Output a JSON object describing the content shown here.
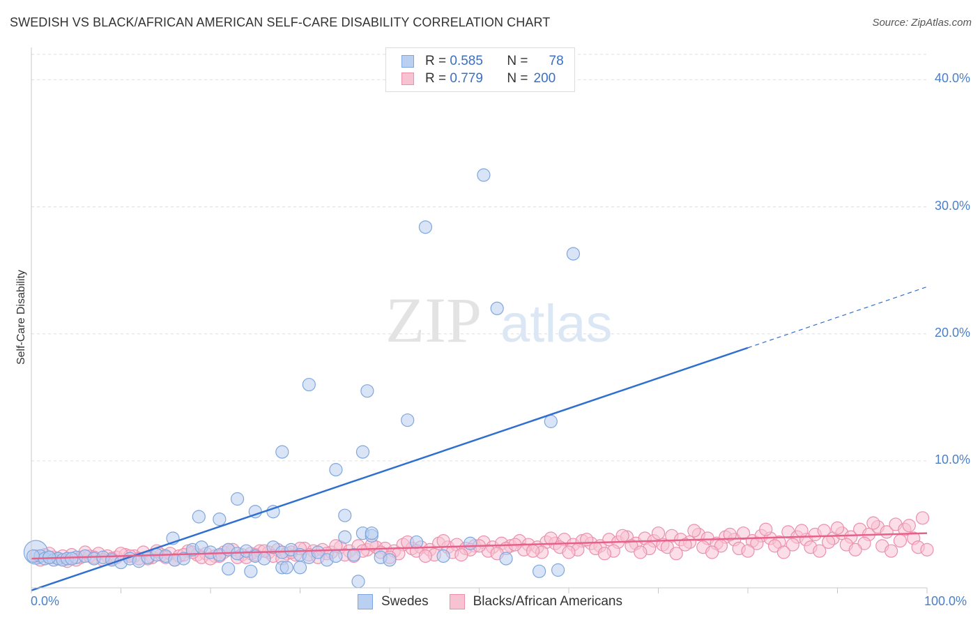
{
  "chart_data": {
    "type": "scatter",
    "title": "SWEDISH VS BLACK/AFRICAN AMERICAN SELF-CARE DISABILITY CORRELATION CHART",
    "source": "Source: ZipAtlas.com",
    "xlabel": "",
    "ylabel": "Self-Care Disability",
    "xlim": [
      0,
      100
    ],
    "ylim": [
      0,
      42
    ],
    "x_tick_labels": [
      "0.0%",
      "100.0%"
    ],
    "y_ticks": [
      10,
      20,
      30,
      40
    ],
    "y_tick_labels": [
      "10.0%",
      "20.0%",
      "30.0%",
      "40.0%"
    ],
    "watermark": "ZIPatlas",
    "legend": [
      {
        "name": "Swedes",
        "r_label": "R =",
        "r_value": "0.585",
        "n_label": "N =",
        "n_value": "78"
      },
      {
        "name": "Blacks/African Americans",
        "r_label": "R =",
        "r_value": "0.779",
        "n_label": "N =",
        "n_value": "200"
      }
    ],
    "colors": {
      "swedes_fill": "#b9d0f0",
      "swedes_stroke": "#7fa6de",
      "swedes_line": "#2f6fcf",
      "blacks_fill": "#f7c3d3",
      "blacks_stroke": "#eb8fad",
      "blacks_line": "#e8608a",
      "grid": "#dddddd",
      "tick_text": "#4a7fc8"
    },
    "series": [
      {
        "name": "Swedes",
        "trendline": {
          "x0": 0,
          "y0": -0.2,
          "x1": 80,
          "y1": 18.9,
          "dashed_to_x": 100,
          "dashed_to_y": 23.7
        },
        "points": [
          [
            0.5,
            2.8
          ],
          [
            1.0,
            2.5
          ],
          [
            1.5,
            2.3
          ],
          [
            2.0,
            2.4
          ],
          [
            2.5,
            2.2
          ],
          [
            3.0,
            2.3
          ],
          [
            3.5,
            2.2
          ],
          [
            4.0,
            2.3
          ],
          [
            5.0,
            2.4
          ],
          [
            6.0,
            2.5
          ],
          [
            7.0,
            2.3
          ],
          [
            8.0,
            2.4
          ],
          [
            9.0,
            2.2
          ],
          [
            10.0,
            2.0
          ],
          [
            11.0,
            2.3
          ],
          [
            12.0,
            2.1
          ],
          [
            13.0,
            2.4
          ],
          [
            14.0,
            2.6
          ],
          [
            15.0,
            2.5
          ],
          [
            16.0,
            2.2
          ],
          [
            17.0,
            2.3
          ],
          [
            18.0,
            3.0
          ],
          [
            19.0,
            3.2
          ],
          [
            20.0,
            2.8
          ],
          [
            21.0,
            2.6
          ],
          [
            22.0,
            3.0
          ],
          [
            23.0,
            2.7
          ],
          [
            24.0,
            2.9
          ],
          [
            25.0,
            2.5
          ],
          [
            26.0,
            2.3
          ],
          [
            27.0,
            3.2
          ],
          [
            28.0,
            2.8
          ],
          [
            29.0,
            3.0
          ],
          [
            30.0,
            2.6
          ],
          [
            31.0,
            2.4
          ],
          [
            32.0,
            2.8
          ],
          [
            33.0,
            2.2
          ],
          [
            34.0,
            2.5
          ],
          [
            35.0,
            4.0
          ],
          [
            36.0,
            2.6
          ],
          [
            37.0,
            4.3
          ],
          [
            38.0,
            4.1
          ],
          [
            39.0,
            2.4
          ],
          [
            40.0,
            2.2
          ],
          [
            43.0,
            3.6
          ],
          [
            46.0,
            2.5
          ],
          [
            49.0,
            3.5
          ],
          [
            53.0,
            2.3
          ],
          [
            15.8,
            3.9
          ],
          [
            18.7,
            5.6
          ],
          [
            21.0,
            5.4
          ],
          [
            23.0,
            7.0
          ],
          [
            25.0,
            6.0
          ],
          [
            27.0,
            6.0
          ],
          [
            28.0,
            1.6
          ],
          [
            22.0,
            1.5
          ],
          [
            24.5,
            1.3
          ],
          [
            28.5,
            1.6
          ],
          [
            30.0,
            1.6
          ],
          [
            35.0,
            5.7
          ],
          [
            38.0,
            4.3
          ],
          [
            28.0,
            10.7
          ],
          [
            31.0,
            16.0
          ],
          [
            37.0,
            10.7
          ],
          [
            34.0,
            9.3
          ],
          [
            37.5,
            15.5
          ],
          [
            42.0,
            13.2
          ],
          [
            44.0,
            28.4
          ],
          [
            50.5,
            32.5
          ],
          [
            52.0,
            22.0
          ],
          [
            60.5,
            26.3
          ],
          [
            58.0,
            13.1
          ],
          [
            36.5,
            0.5
          ],
          [
            56.7,
            1.3
          ],
          [
            58.8,
            1.4
          ],
          [
            2.0,
            2.4
          ],
          [
            0.2,
            2.5
          ],
          [
            4.5,
            2.3
          ]
        ]
      },
      {
        "name": "Blacks/African Americans",
        "trendline": {
          "x0": 0,
          "y0": 2.3,
          "x1": 100,
          "y1": 4.3
        },
        "points": [
          [
            0.5,
            2.5
          ],
          [
            1.5,
            2.6
          ],
          [
            2.5,
            2.4
          ],
          [
            3.5,
            2.5
          ],
          [
            4.5,
            2.6
          ],
          [
            5.5,
            2.4
          ],
          [
            6.5,
            2.5
          ],
          [
            7.5,
            2.7
          ],
          [
            8.5,
            2.5
          ],
          [
            9.5,
            2.4
          ],
          [
            10.5,
            2.6
          ],
          [
            11.5,
            2.5
          ],
          [
            12.5,
            2.8
          ],
          [
            13.5,
            2.4
          ],
          [
            14.5,
            2.6
          ],
          [
            15.5,
            2.7
          ],
          [
            16.5,
            2.5
          ],
          [
            17.5,
            2.9
          ],
          [
            18.5,
            2.6
          ],
          [
            19.5,
            2.7
          ],
          [
            20.5,
            2.5
          ],
          [
            21.5,
            2.8
          ],
          [
            22.5,
            3.0
          ],
          [
            23.5,
            2.6
          ],
          [
            24.5,
            2.7
          ],
          [
            25.5,
            2.9
          ],
          [
            26.5,
            2.8
          ],
          [
            27.5,
            3.0
          ],
          [
            28.5,
            2.7
          ],
          [
            29.5,
            2.6
          ],
          [
            30.5,
            3.1
          ],
          [
            31.5,
            2.9
          ],
          [
            32.5,
            3.0
          ],
          [
            33.5,
            2.8
          ],
          [
            34.5,
            3.2
          ],
          [
            35.5,
            2.9
          ],
          [
            36.5,
            3.3
          ],
          [
            37.5,
            3.0
          ],
          [
            38.5,
            3.2
          ],
          [
            39.5,
            3.1
          ],
          [
            40.5,
            2.9
          ],
          [
            41.5,
            3.4
          ],
          [
            42.5,
            3.1
          ],
          [
            43.5,
            3.2
          ],
          [
            44.5,
            3.0
          ],
          [
            45.5,
            3.5
          ],
          [
            46.5,
            3.2
          ],
          [
            47.5,
            3.4
          ],
          [
            48.5,
            3.1
          ],
          [
            49.5,
            3.3
          ],
          [
            50.5,
            3.6
          ],
          [
            51.5,
            3.2
          ],
          [
            52.5,
            3.5
          ],
          [
            53.5,
            3.3
          ],
          [
            54.5,
            3.7
          ],
          [
            55.5,
            3.4
          ],
          [
            56.5,
            3.2
          ],
          [
            57.5,
            3.6
          ],
          [
            58.5,
            3.5
          ],
          [
            59.5,
            3.8
          ],
          [
            60.5,
            3.4
          ],
          [
            61.5,
            3.7
          ],
          [
            62.5,
            3.5
          ],
          [
            63.5,
            3.3
          ],
          [
            64.5,
            3.8
          ],
          [
            65.5,
            3.6
          ],
          [
            66.5,
            4.0
          ],
          [
            67.5,
            3.5
          ],
          [
            68.5,
            3.9
          ],
          [
            69.5,
            3.7
          ],
          [
            70.5,
            3.4
          ],
          [
            71.5,
            4.1
          ],
          [
            72.5,
            3.8
          ],
          [
            73.5,
            3.6
          ],
          [
            74.5,
            4.2
          ],
          [
            75.5,
            3.9
          ],
          [
            76.5,
            3.5
          ],
          [
            77.5,
            4.0
          ],
          [
            78.5,
            3.8
          ],
          [
            79.5,
            4.3
          ],
          [
            80.5,
            3.7
          ],
          [
            81.5,
            4.1
          ],
          [
            82.5,
            3.9
          ],
          [
            83.5,
            3.6
          ],
          [
            84.5,
            4.4
          ],
          [
            85.5,
            4.0
          ],
          [
            86.5,
            3.8
          ],
          [
            87.5,
            4.2
          ],
          [
            88.5,
            4.5
          ],
          [
            89.5,
            3.9
          ],
          [
            90.5,
            4.3
          ],
          [
            91.5,
            4.0
          ],
          [
            92.5,
            4.6
          ],
          [
            93.5,
            4.2
          ],
          [
            94.5,
            4.8
          ],
          [
            95.5,
            4.4
          ],
          [
            96.5,
            5.0
          ],
          [
            97.5,
            4.6
          ],
          [
            98.5,
            3.9
          ],
          [
            99.5,
            5.5
          ],
          [
            1.0,
            2.2
          ],
          [
            3.0,
            2.3
          ],
          [
            5.0,
            2.2
          ],
          [
            7.0,
            2.4
          ],
          [
            9.0,
            2.3
          ],
          [
            11.0,
            2.5
          ],
          [
            13.0,
            2.3
          ],
          [
            15.0,
            2.4
          ],
          [
            17.0,
            2.6
          ],
          [
            19.0,
            2.4
          ],
          [
            21.0,
            2.5
          ],
          [
            23.0,
            2.4
          ],
          [
            25.0,
            2.6
          ],
          [
            27.0,
            2.5
          ],
          [
            29.0,
            2.8
          ],
          [
            31.0,
            2.6
          ],
          [
            33.0,
            2.7
          ],
          [
            35.0,
            2.6
          ],
          [
            37.0,
            2.9
          ],
          [
            39.0,
            2.8
          ],
          [
            41.0,
            2.7
          ],
          [
            43.0,
            2.9
          ],
          [
            45.0,
            2.6
          ],
          [
            47.0,
            2.8
          ],
          [
            49.0,
            3.0
          ],
          [
            51.0,
            2.9
          ],
          [
            53.0,
            3.1
          ],
          [
            55.0,
            3.0
          ],
          [
            57.0,
            2.8
          ],
          [
            59.0,
            3.2
          ],
          [
            61.0,
            3.0
          ],
          [
            63.0,
            3.1
          ],
          [
            65.0,
            2.9
          ],
          [
            67.0,
            3.3
          ],
          [
            69.0,
            3.1
          ],
          [
            71.0,
            3.2
          ],
          [
            73.0,
            3.4
          ],
          [
            75.0,
            3.2
          ],
          [
            77.0,
            3.3
          ],
          [
            79.0,
            3.1
          ],
          [
            81.0,
            3.5
          ],
          [
            83.0,
            3.3
          ],
          [
            85.0,
            3.4
          ],
          [
            87.0,
            3.2
          ],
          [
            89.0,
            3.6
          ],
          [
            91.0,
            3.4
          ],
          [
            93.0,
            3.5
          ],
          [
            95.0,
            3.3
          ],
          [
            97.0,
            3.7
          ],
          [
            99.0,
            3.2
          ],
          [
            2.0,
            2.7
          ],
          [
            6.0,
            2.8
          ],
          [
            10.0,
            2.7
          ],
          [
            14.0,
            2.9
          ],
          [
            18.0,
            2.8
          ],
          [
            22.0,
            3.0
          ],
          [
            26.0,
            2.9
          ],
          [
            30.0,
            3.1
          ],
          [
            34.0,
            3.3
          ],
          [
            38.0,
            3.4
          ],
          [
            42.0,
            3.6
          ],
          [
            46.0,
            3.7
          ],
          [
            50.0,
            3.3
          ],
          [
            54.0,
            3.4
          ],
          [
            58.0,
            3.9
          ],
          [
            62.0,
            3.8
          ],
          [
            66.0,
            4.1
          ],
          [
            70.0,
            4.3
          ],
          [
            74.0,
            4.5
          ],
          [
            78.0,
            4.2
          ],
          [
            82.0,
            4.6
          ],
          [
            86.0,
            4.5
          ],
          [
            90.0,
            4.7
          ],
          [
            94.0,
            5.1
          ],
          [
            98.0,
            4.9
          ],
          [
            100.0,
            3.0
          ],
          [
            96.0,
            2.9
          ],
          [
            92.0,
            3.0
          ],
          [
            88.0,
            2.9
          ],
          [
            84.0,
            2.8
          ],
          [
            80.0,
            2.9
          ],
          [
            76.0,
            2.8
          ],
          [
            72.0,
            2.7
          ],
          [
            68.0,
            2.8
          ],
          [
            64.0,
            2.7
          ],
          [
            60.0,
            2.8
          ],
          [
            56.0,
            2.9
          ],
          [
            52.0,
            2.7
          ],
          [
            48.0,
            2.6
          ],
          [
            44.0,
            2.5
          ],
          [
            40.0,
            2.4
          ],
          [
            36.0,
            2.5
          ],
          [
            32.0,
            2.4
          ],
          [
            28.0,
            2.3
          ],
          [
            24.0,
            2.4
          ],
          [
            20.0,
            2.3
          ],
          [
            16.0,
            2.2
          ],
          [
            12.0,
            2.3
          ],
          [
            8.0,
            2.2
          ],
          [
            4.0,
            2.1
          ]
        ]
      }
    ]
  }
}
